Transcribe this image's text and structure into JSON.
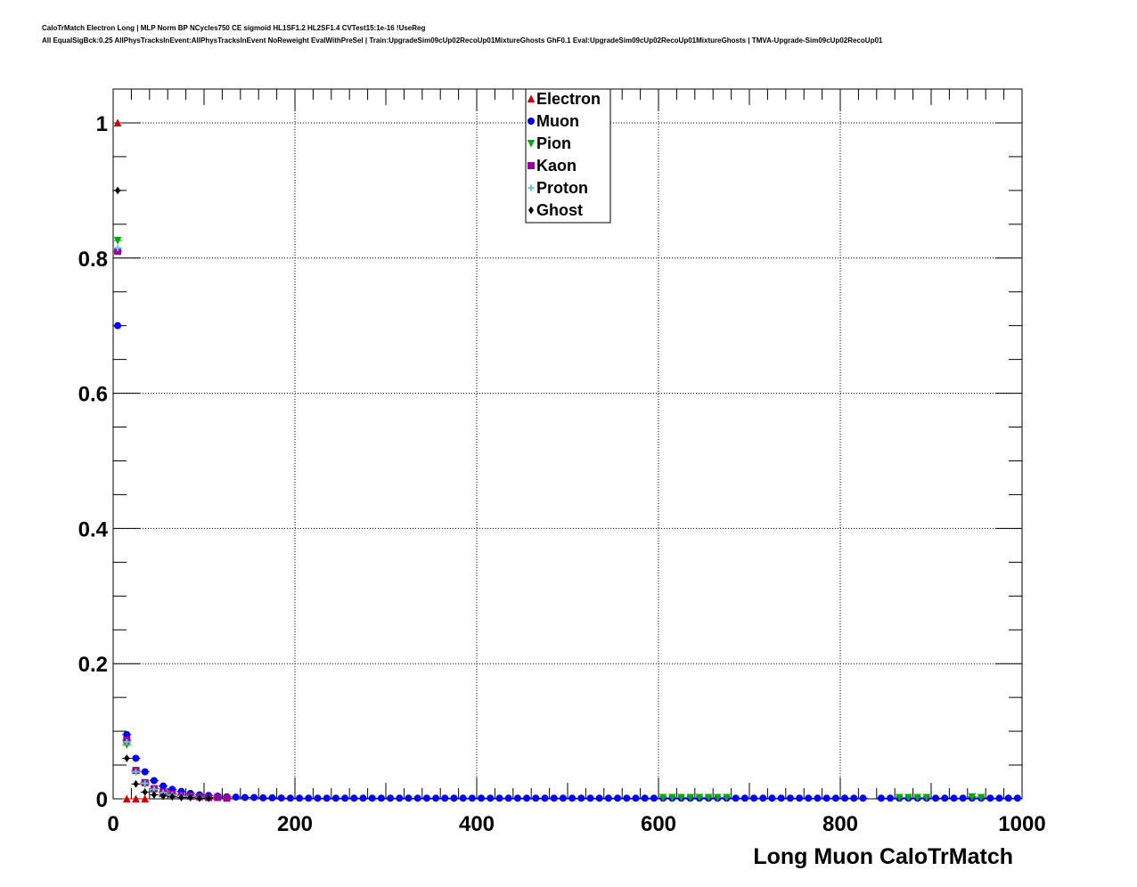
{
  "header": {
    "line1": "CaloTrMatch Electron Long | MLP Norm BP NCycles750 CE sigmoid HL1SF1.2 HL2SF1.4 CVTest15:1e-16 !UseReg",
    "line2": "All EqualSigBck:0.25 AllPhysTracksInEvent:AllPhysTracksInEvent NoReweight EvalWithPreSel | Train:UpgradeSim09cUp02RecoUp01MixtureGhosts GhF0.1 Eval:UpgradeSim09cUp02RecoUp01MixtureGhosts | TMVA-Upgrade-Sim09cUp02RecoUp01"
  },
  "chart_data": {
    "type": "scatter",
    "title": "",
    "xlabel": "Long Muon CaloTrMatch",
    "ylabel": "",
    "xlim": [
      0,
      1000
    ],
    "ylim": [
      0,
      1.05
    ],
    "grid": true,
    "legend_position": "top-center",
    "x_ticks": [
      "0",
      "200",
      "400",
      "600",
      "800",
      "1000"
    ],
    "y_ticks": [
      "0",
      "0.2",
      "0.4",
      "0.6",
      "0.8",
      "1"
    ],
    "series": [
      {
        "name": "Electron",
        "color": "#cc0000",
        "marker": "triangle-up",
        "x": [
          5,
          15,
          25,
          35
        ],
        "y": [
          1.0,
          0.0,
          0.0,
          0.0
        ]
      },
      {
        "name": "Muon",
        "color": "#0000ee",
        "marker": "circle",
        "x": [
          5,
          15,
          25,
          35,
          45,
          55,
          65,
          75,
          85,
          95,
          105,
          115,
          125,
          135,
          145,
          155,
          165,
          175,
          185,
          195,
          205,
          215,
          225,
          235,
          245,
          255,
          265,
          275,
          285,
          295,
          305,
          315,
          325,
          335,
          345,
          355,
          365,
          375,
          385,
          395,
          405,
          415,
          425,
          435,
          445,
          455,
          465,
          475,
          485,
          495,
          505,
          515,
          525,
          535,
          545,
          555,
          565,
          575,
          585,
          595,
          605,
          615,
          625,
          635,
          645,
          655,
          665,
          675,
          685,
          695,
          705,
          715,
          725,
          735,
          745,
          755,
          765,
          775,
          785,
          795,
          805,
          815,
          825,
          845,
          855,
          865,
          875,
          885,
          895,
          905,
          915,
          925,
          935,
          945,
          955,
          965,
          975,
          985,
          995
        ],
        "y": [
          0.7,
          0.095,
          0.06,
          0.04,
          0.027,
          0.019,
          0.014,
          0.011,
          0.008,
          0.006,
          0.005,
          0.004,
          0.003,
          0.0025,
          0.002,
          0.002,
          0.0015,
          0.0015,
          0.0012,
          0.001,
          0.001,
          0.001,
          0.001,
          0.001,
          0.001,
          0.001,
          0.001,
          0.001,
          0.001,
          0.001,
          0.001,
          0.001,
          0.001,
          0.001,
          0.001,
          0.001,
          0.001,
          0.001,
          0.001,
          0.001,
          0.001,
          0.001,
          0.001,
          0.001,
          0.001,
          0.001,
          0.001,
          0.001,
          0.001,
          0.001,
          0.001,
          0.001,
          0.001,
          0.001,
          0.001,
          0.001,
          0.001,
          0.001,
          0.001,
          0.001,
          0.001,
          0.001,
          0.001,
          0.001,
          0.001,
          0.001,
          0.001,
          0.001,
          0.001,
          0.001,
          0.001,
          0.001,
          0.001,
          0.001,
          0.001,
          0.001,
          0.001,
          0.001,
          0.001,
          0.001,
          0.001,
          0.001,
          0.001,
          0.001,
          0.001,
          0.001,
          0.001,
          0.001,
          0.001,
          0.001,
          0.001,
          0.001,
          0.001,
          0.001,
          0.001,
          0.001,
          0.001,
          0.001,
          0.001
        ]
      },
      {
        "name": "Pion",
        "color": "#00aa00",
        "marker": "triangle-down",
        "x": [
          5,
          15,
          25,
          35,
          45,
          55,
          65,
          75,
          85,
          95,
          605,
          615,
          625,
          635,
          645,
          655,
          665,
          675,
          865,
          875,
          885,
          895,
          945,
          955
        ],
        "y": [
          0.826,
          0.08,
          0.04,
          0.022,
          0.014,
          0.01,
          0.007,
          0.005,
          0.004,
          0.003,
          0.002,
          0.002,
          0.002,
          0.002,
          0.002,
          0.002,
          0.002,
          0.002,
          0.002,
          0.002,
          0.002,
          0.002,
          0.003,
          0.002
        ]
      },
      {
        "name": "Kaon",
        "color": "#990099",
        "marker": "square",
        "x": [
          5,
          15,
          25,
          35,
          45,
          55,
          65,
          75,
          85,
          95,
          105,
          115,
          125
        ],
        "y": [
          0.81,
          0.087,
          0.042,
          0.024,
          0.015,
          0.01,
          0.007,
          0.005,
          0.004,
          0.003,
          0.002,
          0.002,
          0.001
        ]
      },
      {
        "name": "Proton",
        "color": "#66cccc",
        "marker": "plus",
        "x": [
          5,
          15,
          25,
          35,
          45,
          55,
          65,
          75,
          85,
          95
        ],
        "y": [
          0.815,
          0.084,
          0.04,
          0.023,
          0.014,
          0.009,
          0.006,
          0.004,
          0.003,
          0.002
        ]
      },
      {
        "name": "Ghost",
        "color": "#000000",
        "marker": "diamond",
        "x": [
          5,
          15,
          25,
          35,
          45,
          55,
          65,
          75,
          85,
          95,
          105
        ],
        "y": [
          0.9,
          0.06,
          0.022,
          0.01,
          0.006,
          0.004,
          0.003,
          0.002,
          0.002,
          0.001,
          0.001
        ]
      }
    ]
  }
}
